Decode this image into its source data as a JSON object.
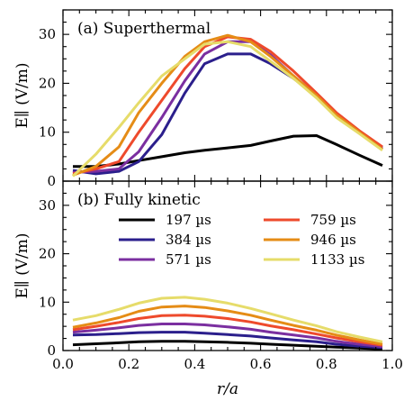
{
  "colors": {
    "197": "#000000",
    "384": "#2b1f8c",
    "571": "#7b2fa0",
    "759": "#ee4a2c",
    "946": "#e58c16",
    "1133": "#e6dc6a"
  },
  "chart_data": [
    {
      "type": "line",
      "panel_label": "(a) Superthermal",
      "ylabel": "E∥ (V/m)",
      "xlabel": "",
      "xlim": [
        0.0,
        1.0
      ],
      "ylim": [
        0,
        35
      ],
      "yticks": [
        0,
        10,
        20,
        30
      ],
      "xticks": [
        0.0,
        0.2,
        0.4,
        0.6,
        0.8,
        1.0
      ],
      "series": [
        {
          "name": "197 µs",
          "key": "197",
          "x": [
            0.03,
            0.1,
            0.17,
            0.23,
            0.3,
            0.37,
            0.43,
            0.5,
            0.57,
            0.63,
            0.7,
            0.77,
            0.83,
            0.9,
            0.97
          ],
          "y": [
            3.0,
            3.0,
            3.5,
            4.2,
            5.0,
            5.8,
            6.3,
            6.8,
            7.3,
            8.2,
            9.2,
            9.3,
            7.5,
            5.3,
            3.2
          ]
        },
        {
          "name": "384 µs",
          "key": "384",
          "x": [
            0.03,
            0.1,
            0.17,
            0.23,
            0.3,
            0.37,
            0.43,
            0.5,
            0.57,
            0.63,
            0.7,
            0.77,
            0.83,
            0.9,
            0.97
          ],
          "y": [
            2.2,
            1.5,
            2.0,
            4.0,
            9.5,
            18.0,
            24.0,
            26.0,
            26.0,
            24.0,
            21.0,
            17.5,
            13.5,
            10.0,
            6.5
          ]
        },
        {
          "name": "571 µs",
          "key": "571",
          "x": [
            0.03,
            0.1,
            0.17,
            0.23,
            0.3,
            0.37,
            0.43,
            0.5,
            0.57,
            0.63,
            0.7,
            0.77,
            0.83,
            0.9,
            0.97
          ],
          "y": [
            1.8,
            2.0,
            2.5,
            6.0,
            13.0,
            20.5,
            26.0,
            28.5,
            28.5,
            25.8,
            21.5,
            17.5,
            13.8,
            10.2,
            6.8
          ]
        },
        {
          "name": "759 µs",
          "key": "759",
          "x": [
            0.03,
            0.1,
            0.17,
            0.23,
            0.3,
            0.37,
            0.43,
            0.5,
            0.57,
            0.63,
            0.7,
            0.77,
            0.83,
            0.9,
            0.97
          ],
          "y": [
            1.5,
            2.5,
            4.0,
            10.0,
            16.5,
            23.0,
            27.5,
            29.5,
            29.0,
            26.5,
            22.5,
            18.0,
            14.0,
            10.3,
            7.0
          ]
        },
        {
          "name": "946 µs",
          "key": "946",
          "x": [
            0.03,
            0.1,
            0.17,
            0.23,
            0.3,
            0.37,
            0.43,
            0.5,
            0.57,
            0.63,
            0.7,
            0.77,
            0.83,
            0.9,
            0.97
          ],
          "y": [
            1.2,
            3.0,
            7.0,
            14.0,
            20.0,
            25.5,
            28.5,
            29.8,
            28.5,
            25.5,
            21.5,
            17.5,
            13.5,
            10.0,
            6.5
          ]
        },
        {
          "name": "1133 µs",
          "key": "1133",
          "x": [
            0.03,
            0.1,
            0.17,
            0.23,
            0.3,
            0.37,
            0.43,
            0.5,
            0.57,
            0.63,
            0.7,
            0.77,
            0.83,
            0.9,
            0.97
          ],
          "y": [
            1.0,
            5.5,
            11.0,
            16.0,
            21.5,
            25.0,
            28.0,
            28.5,
            27.5,
            24.5,
            21.0,
            17.0,
            13.0,
            9.7,
            6.3
          ]
        }
      ]
    },
    {
      "type": "line",
      "panel_label": "(b) Fully kinetic",
      "ylabel": "E∥ (V/m)",
      "xlabel": "r/a",
      "xlim": [
        0.0,
        1.0
      ],
      "ylim": [
        0,
        35
      ],
      "yticks": [
        0,
        10,
        20,
        30
      ],
      "xticks": [
        0.0,
        0.2,
        0.4,
        0.6,
        0.8,
        1.0
      ],
      "series": [
        {
          "name": "197 µs",
          "key": "197",
          "x": [
            0.03,
            0.1,
            0.17,
            0.23,
            0.3,
            0.37,
            0.43,
            0.5,
            0.57,
            0.63,
            0.7,
            0.77,
            0.83,
            0.9,
            0.97
          ],
          "y": [
            1.2,
            1.4,
            1.6,
            1.8,
            1.9,
            1.9,
            1.8,
            1.7,
            1.5,
            1.3,
            1.1,
            0.9,
            0.7,
            0.5,
            0.3
          ]
        },
        {
          "name": "384 µs",
          "key": "384",
          "x": [
            0.03,
            0.1,
            0.17,
            0.23,
            0.3,
            0.37,
            0.43,
            0.5,
            0.57,
            0.63,
            0.7,
            0.77,
            0.83,
            0.9,
            0.97
          ],
          "y": [
            3.2,
            3.3,
            3.5,
            3.7,
            3.8,
            3.8,
            3.6,
            3.3,
            3.0,
            2.6,
            2.2,
            1.8,
            1.3,
            0.9,
            0.6
          ]
        },
        {
          "name": "571 µs",
          "key": "571",
          "x": [
            0.03,
            0.1,
            0.17,
            0.23,
            0.3,
            0.37,
            0.43,
            0.5,
            0.57,
            0.63,
            0.7,
            0.77,
            0.83,
            0.9,
            0.97
          ],
          "y": [
            3.8,
            4.2,
            4.7,
            5.2,
            5.5,
            5.5,
            5.3,
            4.9,
            4.4,
            3.8,
            3.2,
            2.6,
            1.9,
            1.3,
            0.8
          ]
        },
        {
          "name": "759 µs",
          "key": "759",
          "x": [
            0.03,
            0.1,
            0.17,
            0.23,
            0.3,
            0.37,
            0.43,
            0.5,
            0.57,
            0.63,
            0.7,
            0.77,
            0.83,
            0.9,
            0.97
          ],
          "y": [
            4.3,
            5.0,
            5.8,
            6.6,
            7.2,
            7.3,
            7.1,
            6.6,
            5.9,
            5.1,
            4.3,
            3.4,
            2.6,
            1.8,
            1.1
          ]
        },
        {
          "name": "946 µs",
          "key": "946",
          "x": [
            0.03,
            0.1,
            0.17,
            0.23,
            0.3,
            0.37,
            0.43,
            0.5,
            0.57,
            0.63,
            0.7,
            0.77,
            0.83,
            0.9,
            0.97
          ],
          "y": [
            4.8,
            5.7,
            6.8,
            8.1,
            9.0,
            9.2,
            8.9,
            8.2,
            7.3,
            6.3,
            5.2,
            4.2,
            3.2,
            2.2,
            1.3
          ]
        },
        {
          "name": "1133 µs",
          "key": "1133",
          "x": [
            0.03,
            0.1,
            0.17,
            0.23,
            0.3,
            0.37,
            0.43,
            0.5,
            0.57,
            0.63,
            0.7,
            0.77,
            0.83,
            0.9,
            0.97
          ],
          "y": [
            6.3,
            7.2,
            8.5,
            9.8,
            10.8,
            11.0,
            10.6,
            9.8,
            8.7,
            7.6,
            6.3,
            5.1,
            3.9,
            2.8,
            1.8
          ]
        }
      ]
    }
  ],
  "legend": {
    "placement": "top-center",
    "columns": 2,
    "items": [
      {
        "label": "197 µs",
        "key": "197"
      },
      {
        "label": "759 µs",
        "key": "759"
      },
      {
        "label": "384 µs",
        "key": "384"
      },
      {
        "label": "946 µs",
        "key": "946"
      },
      {
        "label": "571 µs",
        "key": "571"
      },
      {
        "label": "1133 µs",
        "key": "1133"
      }
    ]
  }
}
